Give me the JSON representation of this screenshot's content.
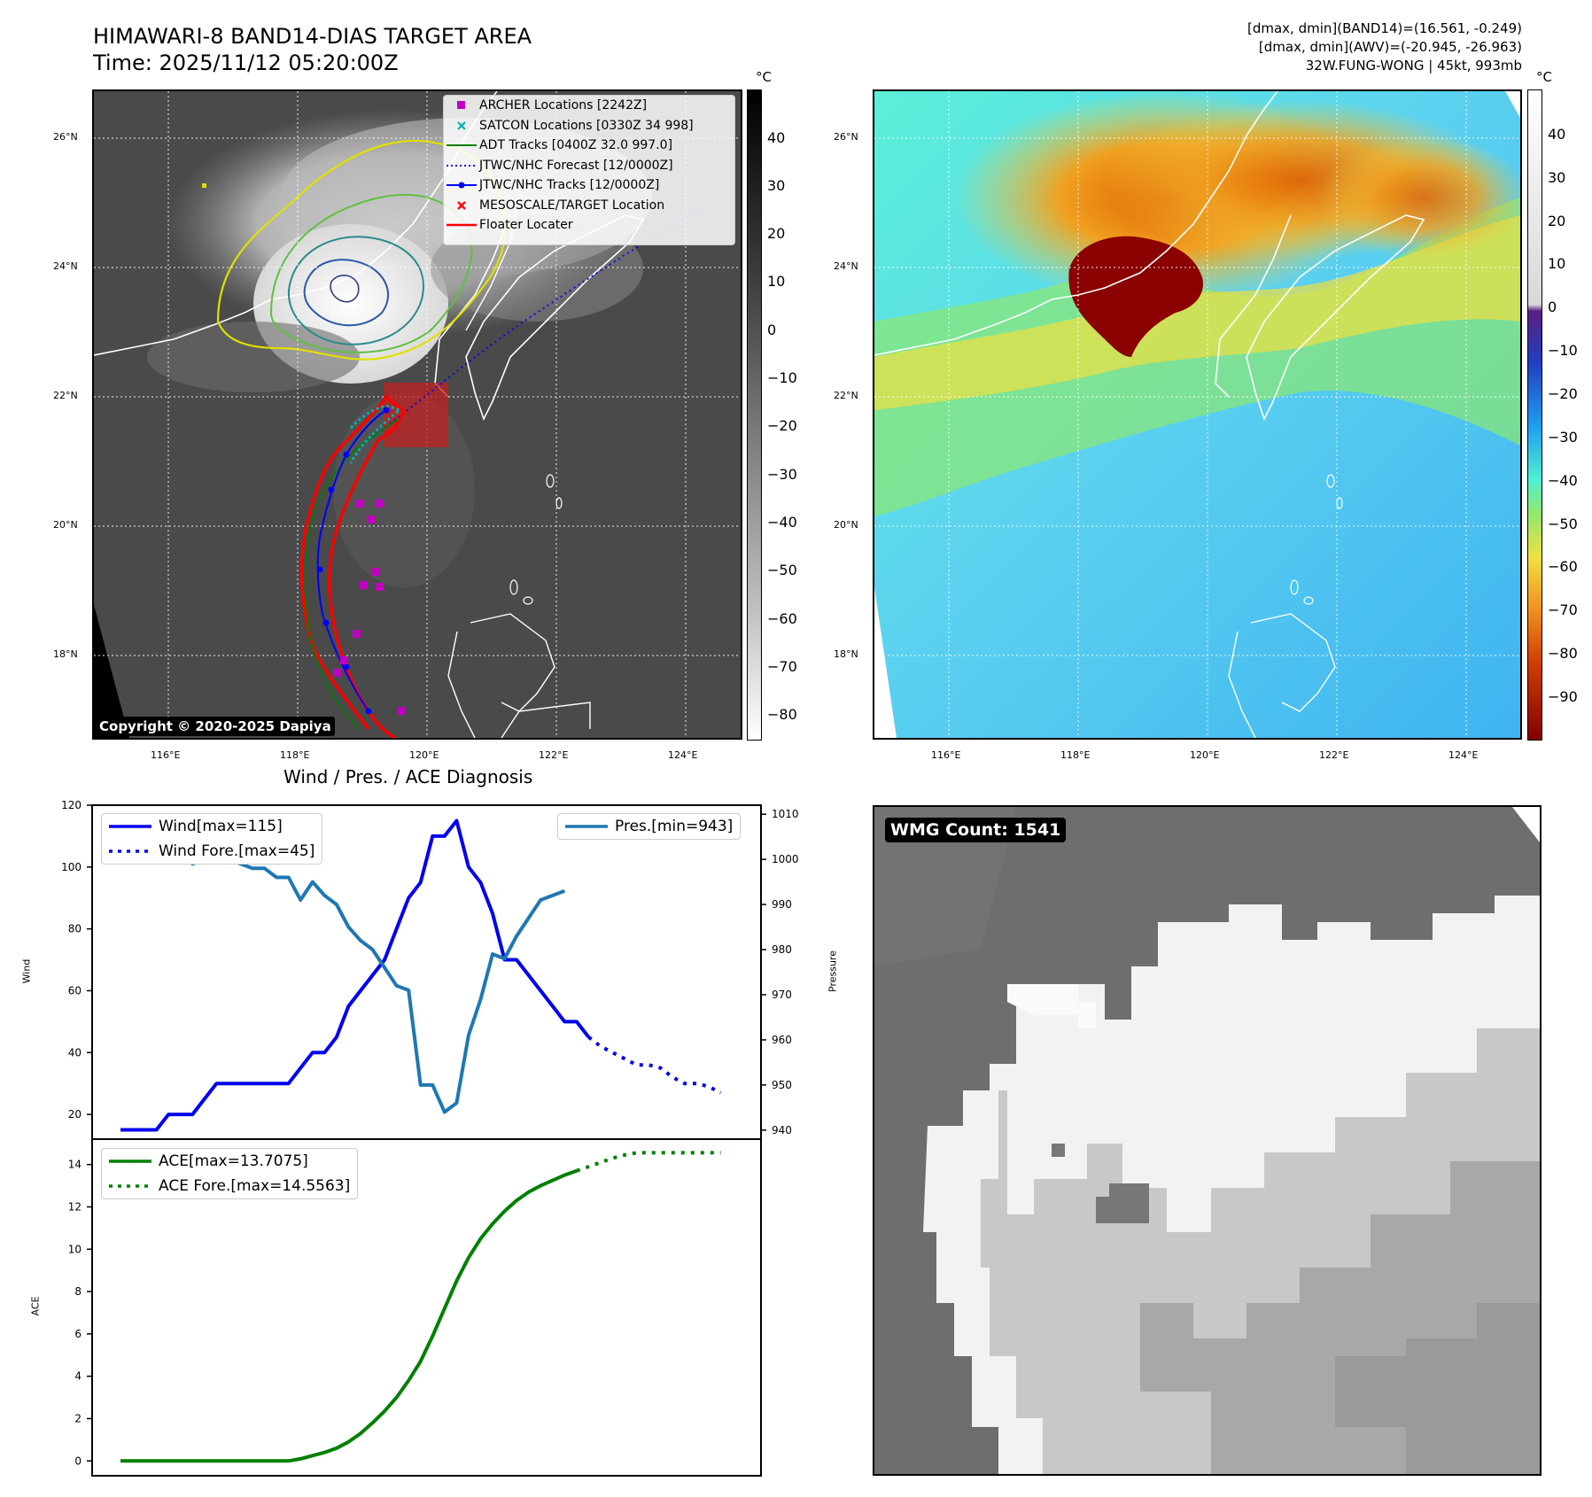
{
  "header": {
    "title_line1": "HIMAWARI-8 BAND14-DIAS TARGET AREA",
    "title_line2": "Time: 2025/11/12 05:20:00Z",
    "stats_line1": "[dmax, dmin](BAND14)=(16.561, -0.249)",
    "stats_line2": "[dmax, dmin](AWV)=(-20.945, -26.963)",
    "stats_line3": "32W.FUNG-WONG | 45kt, 993mb"
  },
  "maps": {
    "lat_labels": [
      "26°N",
      "24°N",
      "22°N",
      "20°N",
      "18°N"
    ],
    "lon_labels": [
      "116°E",
      "118°E",
      "120°E",
      "122°E",
      "124°E"
    ],
    "unit": "°C",
    "copyright": "Copyright © 2020-2025 Dapiya"
  },
  "colorbar_gray": {
    "ticks": [
      "40",
      "30",
      "20",
      "10",
      "0",
      "−10",
      "−20",
      "−30",
      "−40",
      "−50",
      "−60",
      "−70",
      "−80"
    ]
  },
  "colorbar_color": {
    "ticks": [
      "40",
      "30",
      "20",
      "10",
      "0",
      "−10",
      "−20",
      "−30",
      "−40",
      "−50",
      "−60",
      "−70",
      "−80",
      "−90"
    ]
  },
  "map_legend": {
    "items": [
      {
        "label": "ARCHER Locations [2242Z]",
        "color": "#c000c0"
      },
      {
        "label": "SATCON Locations [0330Z 34 998]",
        "color": "#00b0b0"
      },
      {
        "label": "ADT Tracks [0400Z 32.0 997.0]",
        "color": "#008000"
      },
      {
        "label": "JTWC/NHC Forecast [12/0000Z]",
        "color": "#0000ff"
      },
      {
        "label": "JTWC/NHC Tracks [12/0000Z]",
        "color": "#0000ff"
      },
      {
        "label": "MESOSCALE/TARGET Location",
        "color": "#ff0000"
      },
      {
        "label": "Floater Locater",
        "color": "#ff0000"
      }
    ]
  },
  "wmg": {
    "label": "WMG Count: 1541"
  },
  "chart_data": [
    {
      "type": "line",
      "title": "Wind / Pres. / ACE Diagnosis",
      "ylabel": "Wind",
      "y2label": "Pressure",
      "ylim": [
        12,
        120
      ],
      "y2lim": [
        938,
        1012
      ],
      "yticks": [
        20,
        40,
        60,
        80,
        100,
        120
      ],
      "y2ticks": [
        940,
        950,
        960,
        970,
        980,
        990,
        1000,
        1010
      ],
      "series": [
        {
          "name": "Wind[max=115]",
          "color": "#0000ee",
          "style": "solid",
          "values": [
            15,
            15,
            15,
            15,
            20,
            20,
            20,
            25,
            30,
            30,
            30,
            30,
            30,
            30,
            30,
            35,
            40,
            40,
            45,
            55,
            60,
            65,
            70,
            80,
            90,
            95,
            110,
            110,
            115,
            100,
            95,
            85,
            70,
            70,
            65,
            60,
            55,
            50,
            50,
            45
          ]
        },
        {
          "name": "Wind Fore.[max=45]",
          "color": "#0000ee",
          "style": "dotted",
          "x_start": 39,
          "values": [
            45,
            42,
            40,
            38,
            36,
            36,
            35,
            32,
            30,
            30,
            29,
            27
          ]
        },
        {
          "name": "Pres.[min=943]",
          "color": "#1f77b4",
          "style": "solid",
          "axis": "right",
          "values": [
            1007,
            1005,
            1005,
            1005,
            1004,
            1003,
            999,
            1000,
            1000,
            1000,
            999,
            998,
            998,
            996,
            996,
            991,
            995,
            992,
            990,
            985,
            982,
            980,
            976,
            972,
            971,
            950,
            950,
            944,
            946,
            961,
            969,
            979,
            978,
            983,
            987,
            991,
            992,
            993
          ]
        }
      ]
    },
    {
      "type": "line",
      "ylabel": "ACE",
      "ylim": [
        -0.7,
        15.2
      ],
      "yticks": [
        0,
        2,
        4,
        6,
        8,
        10,
        12,
        14
      ],
      "series": [
        {
          "name": "ACE[max=13.7075]",
          "color": "#008000",
          "style": "solid",
          "values": [
            0,
            0,
            0,
            0,
            0,
            0,
            0,
            0,
            0,
            0,
            0,
            0,
            0,
            0,
            0,
            0.1,
            0.25,
            0.4,
            0.6,
            0.9,
            1.3,
            1.8,
            2.35,
            3.0,
            3.8,
            4.7,
            5.9,
            7.2,
            8.5,
            9.6,
            10.5,
            11.2,
            11.8,
            12.3,
            12.7,
            13.0,
            13.25,
            13.5,
            13.7075
          ]
        },
        {
          "name": "ACE Fore.[max=14.5563]",
          "color": "#008000",
          "style": "dotted",
          "x_start": 38,
          "values": [
            13.7075,
            13.9,
            14.1,
            14.3,
            14.45,
            14.5563,
            14.5563,
            14.5563,
            14.5563,
            14.5563,
            14.5563,
            14.5563,
            14.5563
          ]
        }
      ]
    }
  ]
}
